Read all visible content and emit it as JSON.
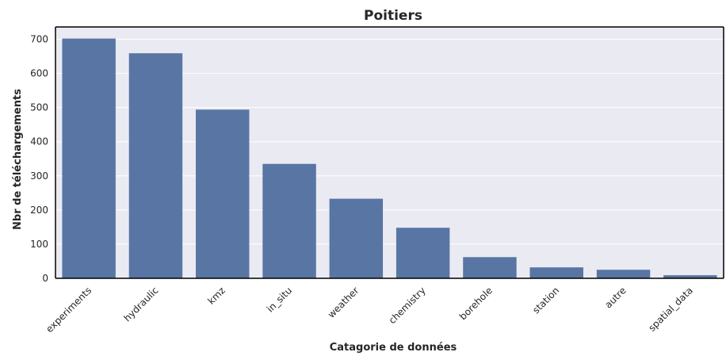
{
  "chart_data": {
    "type": "bar",
    "title": "Poitiers",
    "xlabel": "Catagorie de données",
    "ylabel": "Nbr de téléchargements",
    "categories": [
      "experiments",
      "hydraulic",
      "kmz",
      "in_situ",
      "weather",
      "chemistry",
      "borehole",
      "station",
      "autre",
      "spatial_data"
    ],
    "values": [
      702,
      659,
      494,
      335,
      233,
      148,
      62,
      32,
      25,
      9
    ],
    "ylim": [
      0,
      736
    ],
    "yticks": [
      0,
      100,
      200,
      300,
      400,
      500,
      600,
      700
    ],
    "grid": true,
    "legend": "none",
    "colors": {
      "bar": "#5875a4",
      "plot_background": "#eaeaf2",
      "grid": "#ffffff",
      "axis_line": "#000000",
      "text": "#262626"
    }
  }
}
